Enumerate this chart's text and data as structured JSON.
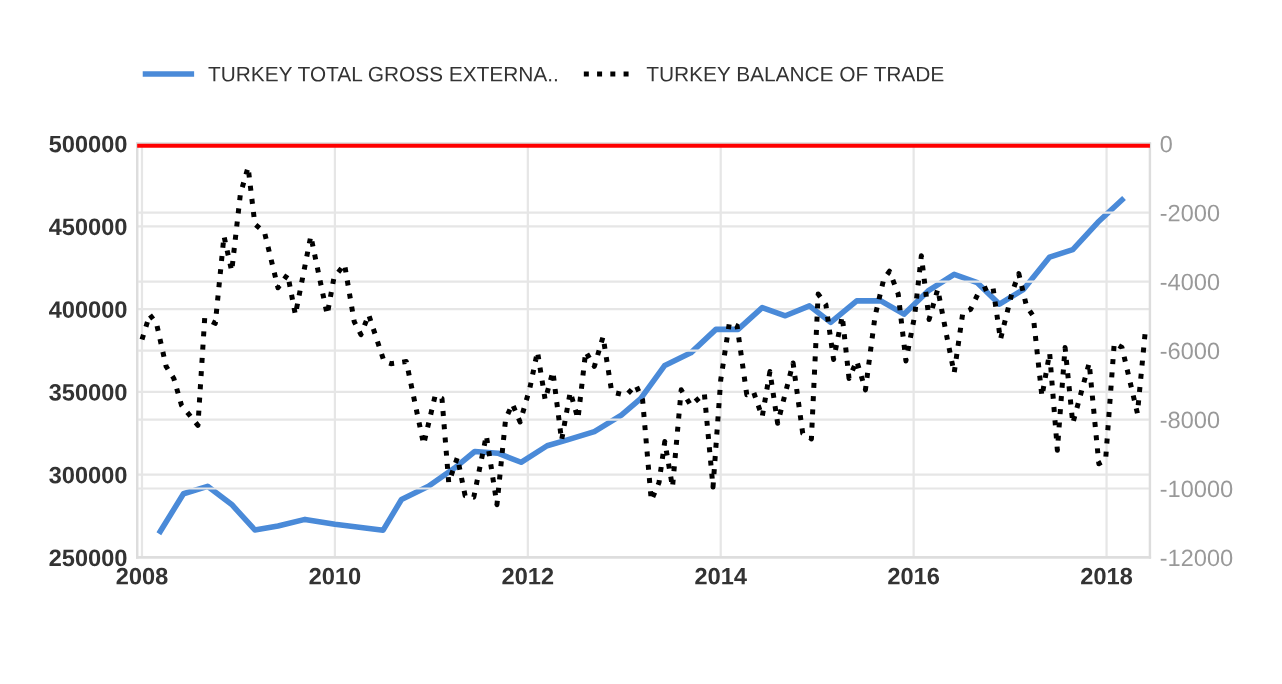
{
  "chart_data": {
    "type": "line",
    "xlim": [
      2007.95,
      2018.45
    ],
    "xticks": [
      2008,
      2010,
      2012,
      2014,
      2016,
      2018
    ],
    "ylim": [
      250000,
      500000
    ],
    "yticks": [
      250000,
      300000,
      350000,
      400000,
      450000,
      500000
    ],
    "y2lim": [
      -12000,
      0
    ],
    "y2ticks": [
      -12000,
      -10000,
      -8000,
      -6000,
      -4000,
      -2000,
      0
    ],
    "grid": true,
    "legend": "top left",
    "marker": "none",
    "ref_lines": [
      {
        "axis": "y2",
        "value": 0,
        "color": "#ff0000",
        "line_style": "solid"
      }
    ],
    "series": [
      {
        "name": "TURKEY TOTAL GROSS EXTERNA..",
        "color": "#4a8ad8",
        "line_style": "solid",
        "x": [
          2008.19,
          2008.43,
          2008.68,
          2008.93,
          2009.17,
          2009.41,
          2009.69,
          2010.0,
          2010.5,
          2010.69,
          2010.97,
          2011.24,
          2011.45,
          2011.69,
          2011.93,
          2012.2,
          2012.41,
          2012.69,
          2012.97,
          2013.17,
          2013.42,
          2013.69,
          2013.95,
          2014.18,
          2014.43,
          2014.67,
          2014.92,
          2015.14,
          2015.41,
          2015.66,
          2015.9,
          2016.15,
          2016.42,
          2016.66,
          2016.89,
          2017.14,
          2017.41,
          2017.65,
          2017.91,
          2018.16
        ],
        "values": [
          265800,
          288500,
          293000,
          282000,
          266600,
          269000,
          273000,
          270000,
          266500,
          285000,
          293000,
          304000,
          314000,
          313000,
          307500,
          317500,
          321000,
          326000,
          336000,
          346000,
          366000,
          373600,
          387800,
          387800,
          401000,
          396000,
          402000,
          392000,
          405000,
          405000,
          397000,
          411000,
          421000,
          416000,
          403000,
          412000,
          431500,
          436000,
          452500,
          466000
        ]
      },
      {
        "name": "TURKEY BALANCE OF TRADE",
        "color": "#000000",
        "line_style": "dotted",
        "axis": "y2",
        "x": [
          2008.0,
          2008.08,
          2008.15,
          2008.25,
          2008.33,
          2008.41,
          2008.58,
          2008.65,
          2008.76,
          2008.85,
          2008.93,
          2009.02,
          2009.1,
          2009.17,
          2009.27,
          2009.41,
          2009.51,
          2009.59,
          2009.75,
          2009.92,
          2009.99,
          2010.1,
          2010.2,
          2010.27,
          2010.35,
          2010.51,
          2010.58,
          2010.74,
          2010.92,
          2011.04,
          2011.11,
          2011.18,
          2011.27,
          2011.35,
          2011.44,
          2011.57,
          2011.68,
          2011.77,
          2011.84,
          2011.92,
          2012.02,
          2012.1,
          2012.18,
          2012.26,
          2012.35,
          2012.44,
          2012.52,
          2012.6,
          2012.69,
          2012.78,
          2012.87,
          2013.02,
          2013.12,
          2013.19,
          2013.28,
          2013.36,
          2013.42,
          2013.5,
          2013.59,
          2013.69,
          2013.83,
          2013.92,
          2014.0,
          2014.09,
          2014.17,
          2014.27,
          2014.34,
          2014.43,
          2014.51,
          2014.59,
          2014.75,
          2014.85,
          2014.94,
          2015.01,
          2015.09,
          2015.17,
          2015.26,
          2015.33,
          2015.41,
          2015.5,
          2015.6,
          2015.69,
          2015.75,
          2015.84,
          2015.92,
          2016.01,
          2016.08,
          2016.16,
          2016.25,
          2016.35,
          2016.42,
          2016.51,
          2016.59,
          2016.68,
          2016.82,
          2016.9,
          2017.02,
          2017.09,
          2017.17,
          2017.24,
          2017.33,
          2017.41,
          2017.49,
          2017.57,
          2017.65,
          2017.82,
          2017.92,
          2017.99,
          2018.08,
          2018.16,
          2018.32,
          2018.4
        ],
        "values": [
          -5680,
          -4960,
          -5210,
          -6460,
          -6810,
          -7590,
          -8170,
          -5060,
          -5210,
          -2680,
          -3700,
          -1460,
          -680,
          -2330,
          -2570,
          -4180,
          -3790,
          -4960,
          -2680,
          -4960,
          -3890,
          -3500,
          -5160,
          -5540,
          -4960,
          -6320,
          -6380,
          -6320,
          -8720,
          -7300,
          -7390,
          -9830,
          -9100,
          -10210,
          -10250,
          -8460,
          -10470,
          -7980,
          -7550,
          -8070,
          -7100,
          -6030,
          -7430,
          -6610,
          -8600,
          -7200,
          -7980,
          -6030,
          -6460,
          -5600,
          -7200,
          -7300,
          -7000,
          -7430,
          -10350,
          -9830,
          -8640,
          -9960,
          -7140,
          -7590,
          -7240,
          -9960,
          -6850,
          -5190,
          -5290,
          -7280,
          -7200,
          -7920,
          -6610,
          -8110,
          -6360,
          -8400,
          -8560,
          -4360,
          -4670,
          -6260,
          -5000,
          -6810,
          -6300,
          -7140,
          -5000,
          -3930,
          -3700,
          -4360,
          -6300,
          -5000,
          -3250,
          -5100,
          -4220,
          -5680,
          -6650,
          -4900,
          -4810,
          -4280,
          -4120,
          -5680,
          -4320,
          -3770,
          -4710,
          -5000,
          -7330,
          -6070,
          -8890,
          -5910,
          -8110,
          -6360,
          -9280,
          -9180,
          -5780,
          -5910,
          -7820,
          -5490
        ]
      }
    ]
  }
}
